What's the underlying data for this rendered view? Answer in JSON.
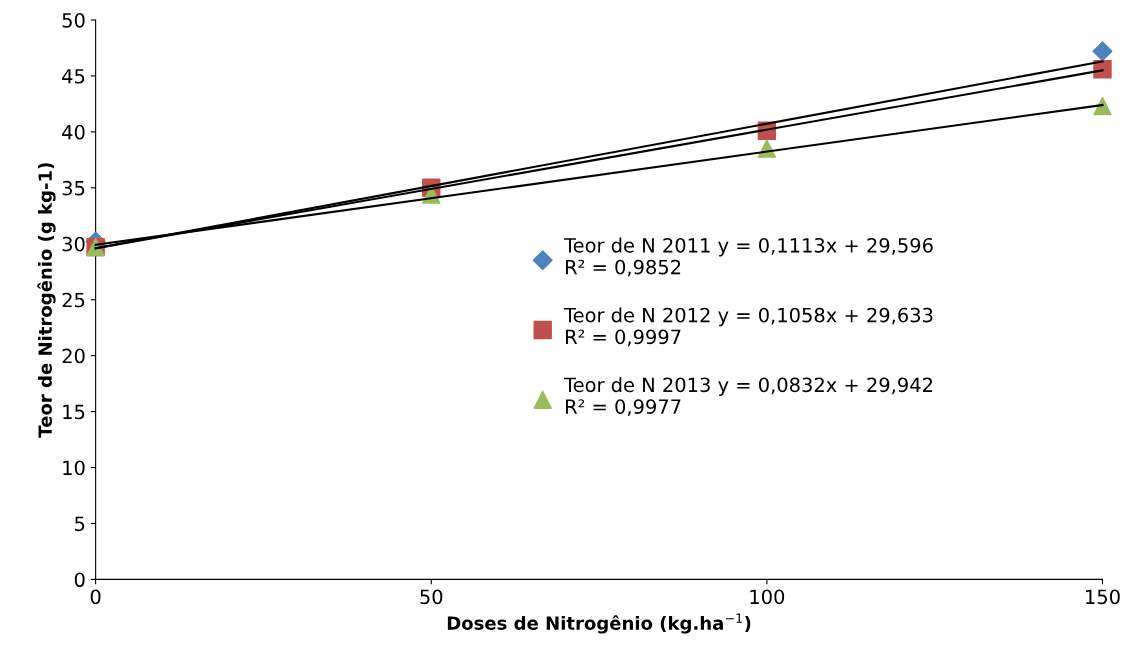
{
  "chart_data": {
    "type": "scatter",
    "xlabel": "Doses de Nitrogênio (kg.ha$^{−1}$)",
    "ylabel": "Teor de Nitrogênio (g kg-1)",
    "x": [
      0,
      50,
      100,
      150
    ],
    "series": [
      {
        "name": "Teor de N 2011 y = 0,1113x + 29,596\nR² = 0,9852",
        "color": "#4f81bd",
        "marker": "diamond",
        "values": [
          30.2,
          null,
          null,
          47.2
        ]
      },
      {
        "name": "Teor de N 2012 y = 0,1058x + 29,633\nR² = 0,9997",
        "color": "#c0504d",
        "marker": "square",
        "values": [
          29.7,
          35.0,
          40.1,
          45.6
        ]
      },
      {
        "name": "Teor de N 2013 y = 0,0832x + 29,942\nR² = 0,9977",
        "color": "#9bbb59",
        "marker": "triangle",
        "values": [
          29.7,
          34.4,
          38.5,
          42.3
        ]
      },
      {
        "type": "line",
        "color": "#000000",
        "marker": "none",
        "values": [
          29.6,
          null,
          null,
          46.3
        ]
      },
      {
        "type": "line",
        "color": "#000000",
        "marker": "none",
        "values": [
          29.6,
          null,
          null,
          45.5
        ]
      },
      {
        "type": "line",
        "color": "#000000",
        "marker": "none",
        "values": [
          29.9,
          null,
          null,
          42.4
        ]
      }
    ],
    "xlim": [
      0,
      150
    ],
    "xticks": [
      0,
      50,
      100,
      150
    ],
    "ylim": [
      0,
      50
    ],
    "yticks": [
      0,
      5,
      10,
      15,
      20,
      25,
      30,
      35,
      40,
      45,
      50
    ],
    "grid": false,
    "legend": "center right"
  }
}
